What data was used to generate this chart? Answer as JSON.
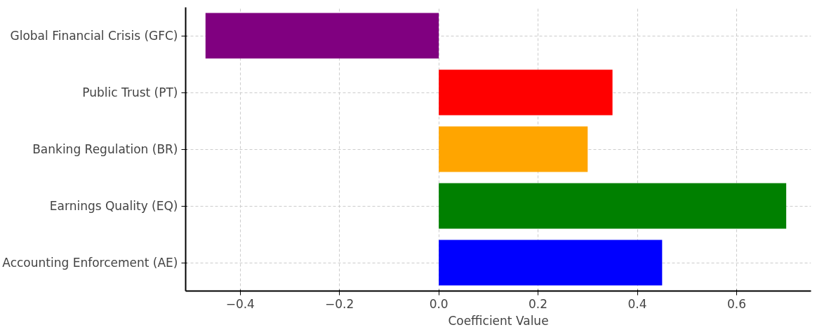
{
  "chart_data": {
    "type": "bar",
    "orientation": "horizontal",
    "xlabel": "Coefficient Value",
    "categories": [
      "Global Financial Crisis (GFC)",
      "Public Trust (PT)",
      "Banking Regulation (BR)",
      "Earnings Quality (EQ)",
      "Accounting Enforcement (AE)"
    ],
    "values": [
      -0.47,
      0.35,
      0.3,
      0.7,
      0.45
    ],
    "colors": [
      "#800080",
      "#ff0000",
      "#ffa500",
      "#008000",
      "#0000ff"
    ],
    "xlim": [
      -0.51,
      0.75
    ],
    "xticks": [
      {
        "value": -0.4,
        "label": "−0.4"
      },
      {
        "value": -0.2,
        "label": "−0.2"
      },
      {
        "value": 0,
        "label": "0.0"
      },
      {
        "value": 0.2,
        "label": "0.2"
      },
      {
        "value": 0.4,
        "label": "0.4"
      },
      {
        "value": 0.6,
        "label": "0.6"
      }
    ],
    "grid": true
  }
}
